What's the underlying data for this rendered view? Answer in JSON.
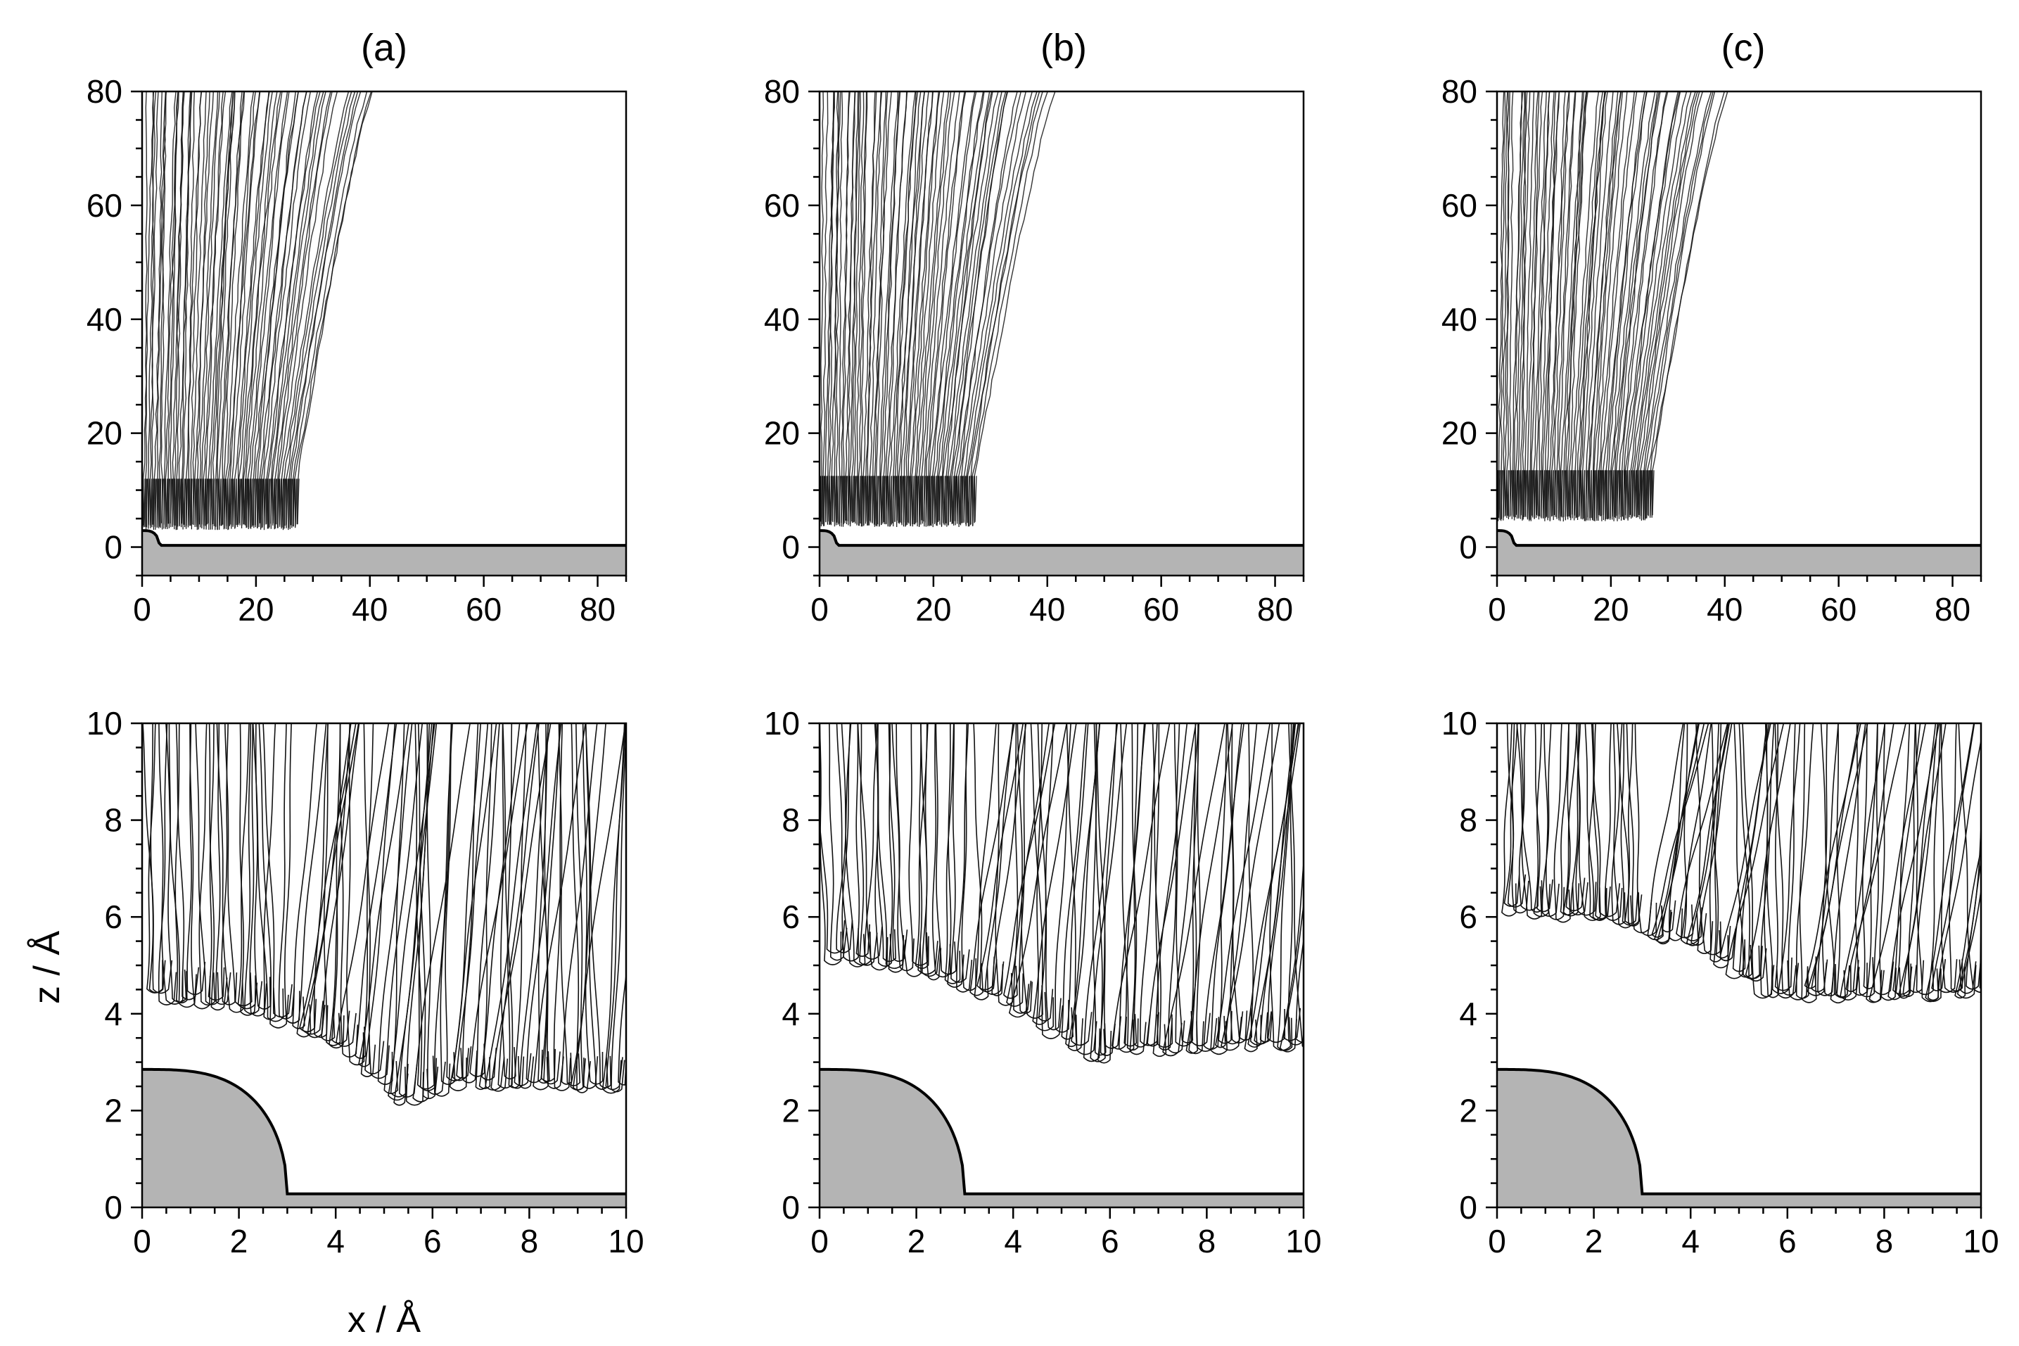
{
  "figure": {
    "panel_labels": [
      "(a)",
      "(b)",
      "(c)"
    ],
    "xlabel": "x / Å",
    "ylabel": "z / Å"
  },
  "colors": {
    "trajectory": "#111111",
    "surface_fill": "#b4b4b4",
    "surface_edge": "#000000",
    "frame": "#000000"
  },
  "chart_data": [
    {
      "type": "line",
      "panel": "(a)",
      "row": "top",
      "xlim": [
        0,
        85
      ],
      "ylim": [
        -5,
        80
      ],
      "xticks": [
        0,
        20,
        40,
        60,
        80
      ],
      "yticks": [
        0,
        20,
        40,
        60,
        80
      ],
      "surface_bump_height": 2.9,
      "surface_base": 0.3,
      "surface_bump_halfwidth": 3.0,
      "turning_level": 3.0,
      "cut_level": 12,
      "trajectories": "dense family of ~70 atom trajectories entering from the top, fanning from x≈0–40 at z=80 down to x≈0–27 near the surface"
    },
    {
      "type": "line",
      "panel": "(b)",
      "row": "top",
      "xlim": [
        0,
        85
      ],
      "ylim": [
        -5,
        80
      ],
      "xticks": [
        0,
        20,
        40,
        60,
        80
      ],
      "yticks": [
        0,
        20,
        40,
        60,
        80
      ],
      "surface_bump_height": 2.9,
      "surface_base": 0.3,
      "surface_bump_halfwidth": 3.0,
      "turning_level": 3.5,
      "cut_level": 12.5,
      "trajectories": "dense family of atom trajectories, fanning from x≈0–40 at z=80 down to x≈0–27"
    },
    {
      "type": "line",
      "panel": "(c)",
      "row": "top",
      "xlim": [
        0,
        85
      ],
      "ylim": [
        -5,
        80
      ],
      "xticks": [
        0,
        20,
        40,
        60,
        80
      ],
      "yticks": [
        0,
        20,
        40,
        60,
        80
      ],
      "surface_bump_height": 2.9,
      "surface_base": 0.3,
      "surface_bump_halfwidth": 3.0,
      "turning_level": 4.5,
      "cut_level": 13.5,
      "trajectories": "dense family of atom trajectories, fanning from x≈0–40 at z=80 down to x≈0–27"
    },
    {
      "type": "line",
      "panel": "(a)",
      "row": "bottom",
      "xlim": [
        0,
        10
      ],
      "ylim": [
        0,
        10
      ],
      "xticks": [
        0,
        2,
        4,
        6,
        8,
        10
      ],
      "yticks": [
        0,
        2,
        4,
        6,
        8,
        10
      ],
      "surface_bump_height": 2.85,
      "surface_base": 0.28,
      "surface_bump_halfwidth": 3.0,
      "turning_profile": [
        [
          0,
          4.3
        ],
        [
          2,
          4.05
        ],
        [
          4,
          3.2
        ],
        [
          5.2,
          2.1
        ],
        [
          6.5,
          2.5
        ],
        [
          8,
          2.4
        ],
        [
          10,
          2.4
        ]
      ]
    },
    {
      "type": "line",
      "panel": "(b)",
      "row": "bottom",
      "xlim": [
        0,
        10
      ],
      "ylim": [
        0,
        10
      ],
      "xticks": [
        0,
        2,
        4,
        6,
        8,
        10
      ],
      "yticks": [
        0,
        2,
        4,
        6,
        8,
        10
      ],
      "surface_bump_height": 2.85,
      "surface_base": 0.28,
      "surface_bump_halfwidth": 3.0,
      "turning_profile": [
        [
          0,
          5.1
        ],
        [
          2,
          4.8
        ],
        [
          4,
          4.0
        ],
        [
          5.5,
          3.0
        ],
        [
          7,
          3.2
        ],
        [
          10,
          3.3
        ]
      ]
    },
    {
      "type": "line",
      "panel": "(c)",
      "row": "bottom",
      "xlim": [
        0,
        10
      ],
      "ylim": [
        0,
        10
      ],
      "xticks": [
        0,
        2,
        4,
        6,
        8,
        10
      ],
      "yticks": [
        0,
        2,
        4,
        6,
        8,
        10
      ],
      "surface_bump_height": 2.85,
      "surface_base": 0.28,
      "surface_bump_halfwidth": 3.0,
      "turning_profile": [
        [
          0,
          6.0
        ],
        [
          2,
          5.9
        ],
        [
          4,
          5.3
        ],
        [
          5.5,
          4.3
        ],
        [
          7,
          4.3
        ],
        [
          10,
          4.3
        ]
      ]
    }
  ]
}
